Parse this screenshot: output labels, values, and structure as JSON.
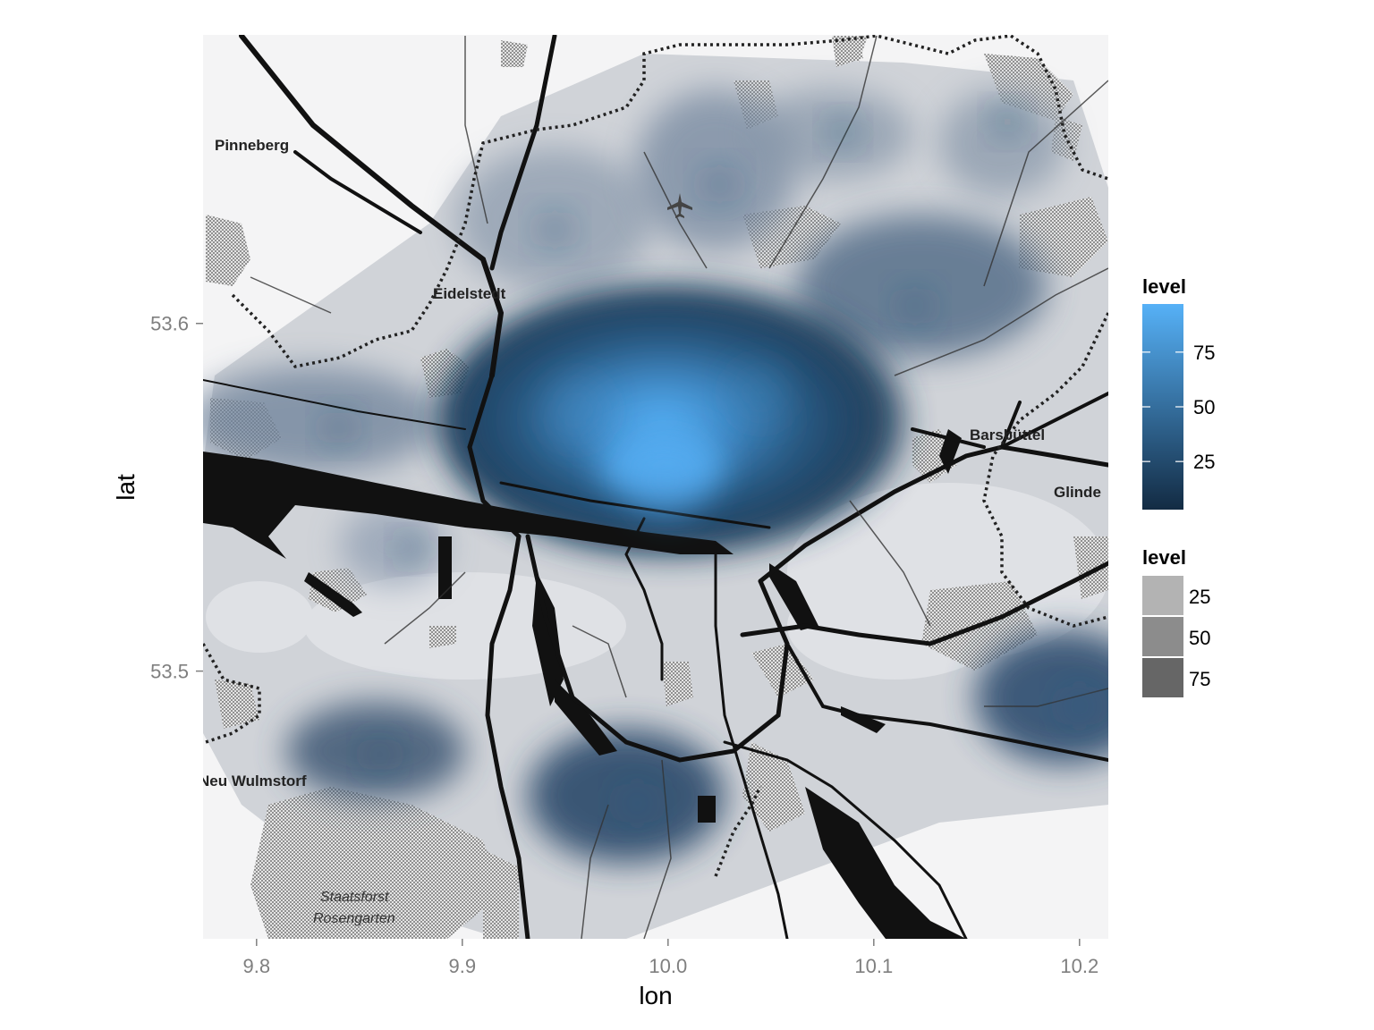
{
  "map": {
    "place_labels": [
      {
        "id": "pinneberg",
        "text": "Pinneberg"
      },
      {
        "id": "eidelstedt",
        "text": "Eidelstedt"
      },
      {
        "id": "barsbuettel",
        "text": "Barsbüttel"
      },
      {
        "id": "glinde",
        "text": "Glinde"
      },
      {
        "id": "neu-wulmstorf",
        "text": "Neu Wulmstorf"
      },
      {
        "id": "staatsforst-1",
        "text": "Staatsforst"
      },
      {
        "id": "staatsforst-2",
        "text": "Rosengarten"
      }
    ],
    "icons": [
      "airport-icon"
    ]
  },
  "chart_data": {
    "type": "density-map",
    "xlabel": "lon",
    "ylabel": "lat",
    "x_ticks": [
      "9.8",
      "9.9",
      "10.0",
      "10.1",
      "10.2"
    ],
    "y_ticks": [
      "53.6",
      "53.5"
    ],
    "x_tick_values": [
      9.8,
      9.9,
      10.0,
      10.1,
      10.2
    ],
    "y_tick_values": [
      53.6,
      53.5
    ],
    "xlim": [
      9.774,
      10.214
    ],
    "ylim": [
      53.423,
      53.683
    ],
    "legend_fill": {
      "title": "level",
      "breaks": [
        "75",
        "50",
        "25"
      ],
      "colors": {
        "low": "#132b43",
        "high": "#56b1f7"
      }
    },
    "legend_alpha": {
      "title": "level",
      "breaks": [
        "25",
        "50",
        "75"
      ],
      "colors": [
        "#b3b3b3",
        "#8c8c8c",
        "#666666"
      ]
    },
    "hotspots": [
      {
        "lon": 10.0,
        "lat": 53.555,
        "level": 95
      },
      {
        "lon": 9.955,
        "lat": 53.575,
        "level": 70
      },
      {
        "lon": 10.045,
        "lat": 53.58,
        "level": 65
      },
      {
        "lon": 9.945,
        "lat": 53.627,
        "level": 30
      },
      {
        "lon": 10.025,
        "lat": 53.64,
        "level": 30
      },
      {
        "lon": 10.085,
        "lat": 53.655,
        "level": 20
      },
      {
        "lon": 10.165,
        "lat": 53.658,
        "level": 20
      },
      {
        "lon": 10.12,
        "lat": 53.605,
        "level": 30
      },
      {
        "lon": 9.84,
        "lat": 53.57,
        "level": 25
      },
      {
        "lon": 9.875,
        "lat": 53.535,
        "level": 15
      },
      {
        "lon": 10.2,
        "lat": 53.49,
        "level": 35
      },
      {
        "lon": 9.86,
        "lat": 53.476,
        "level": 25
      },
      {
        "lon": 9.985,
        "lat": 53.462,
        "level": 35
      }
    ]
  }
}
